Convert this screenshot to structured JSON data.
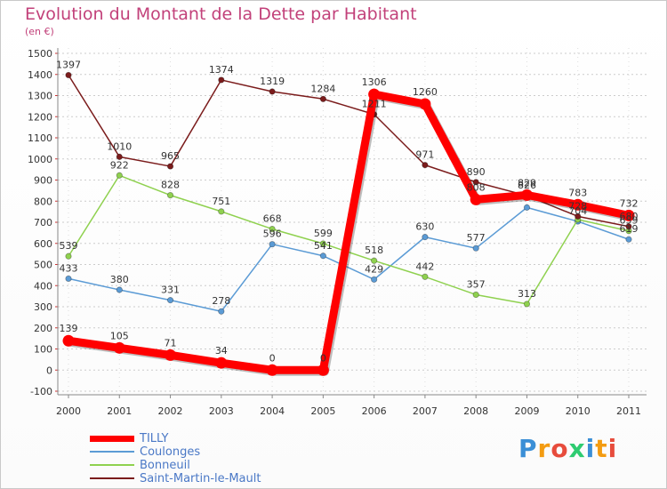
{
  "header": {
    "title": "Evolution du Montant de la Dette par Habitant",
    "subtitle": "(en €)"
  },
  "colors": {
    "title": "#c2417a",
    "grid": "#cccccc",
    "axis": "#888888",
    "legend_text": "#4a78c6"
  },
  "chart_data": {
    "type": "line",
    "title": "Evolution du Montant de la Dette par Habitant",
    "ylabel": "(en €)",
    "xlabel": "",
    "x": [
      "2000",
      "2001",
      "2002",
      "2003",
      "2004",
      "2005",
      "2006",
      "2007",
      "2008",
      "2009",
      "2010",
      "2011"
    ],
    "ylim": [
      -100,
      1500
    ],
    "yticks": [
      -100,
      0,
      100,
      200,
      300,
      400,
      500,
      600,
      700,
      800,
      900,
      1000,
      1100,
      1200,
      1300,
      1400,
      1500
    ],
    "grid": true,
    "legend_position": "bottom-left",
    "series": [
      {
        "name": "TILLY",
        "color": "#ff0000",
        "emphasis": true,
        "values": [
          139,
          105,
          71,
          34,
          0,
          0,
          1306,
          1260,
          808,
          829,
          783,
          732
        ],
        "labels": [
          "139",
          "105",
          "71",
          "34",
          "0",
          "0",
          "1306",
          "1260",
          "808",
          "829",
          "783",
          "732"
        ]
      },
      {
        "name": "Coulonges",
        "color": "#5b9bd5",
        "emphasis": false,
        "values": [
          433,
          380,
          331,
          278,
          596,
          541,
          429,
          630,
          577,
          770,
          704,
          619
        ],
        "labels": [
          "433",
          "380",
          "331",
          "278",
          "596",
          "541",
          "429",
          "630",
          "577",
          "",
          "704",
          "619"
        ]
      },
      {
        "name": "Bonneuil",
        "color": "#8fd14f",
        "emphasis": false,
        "values": [
          539,
          922,
          828,
          751,
          668,
          599,
          518,
          442,
          357,
          313,
          713,
          659
        ],
        "labels": [
          "539",
          "922",
          "828",
          "751",
          "668",
          "599",
          "518",
          "442",
          "357",
          "313",
          "",
          "659"
        ]
      },
      {
        "name": "Saint-Martin-le-Mault",
        "color": "#7b1c1c",
        "emphasis": false,
        "values": [
          1397,
          1010,
          965,
          1374,
          1319,
          1284,
          1211,
          971,
          890,
          826,
          728,
          680
        ],
        "labels": [
          "1397",
          "1010",
          "965",
          "1374",
          "1319",
          "1284",
          "1211",
          "971",
          "890",
          "826",
          "728",
          "680"
        ]
      }
    ]
  },
  "legend": [
    {
      "label": "TILLY"
    },
    {
      "label": "Coulonges"
    },
    {
      "label": "Bonneuil"
    },
    {
      "label": "Saint-Martin-le-Mault"
    }
  ],
  "logo": {
    "text": "Proxiti",
    "letters": [
      {
        "ch": "P",
        "color": "#3b8fd6"
      },
      {
        "ch": "r",
        "color": "#f39c12"
      },
      {
        "ch": "o",
        "color": "#e74c3c"
      },
      {
        "ch": "x",
        "color": "#2ecc71"
      },
      {
        "ch": "i",
        "color": "#3b8fd6"
      },
      {
        "ch": "t",
        "color": "#f39c12"
      },
      {
        "ch": "i",
        "color": "#e74c3c"
      }
    ]
  }
}
